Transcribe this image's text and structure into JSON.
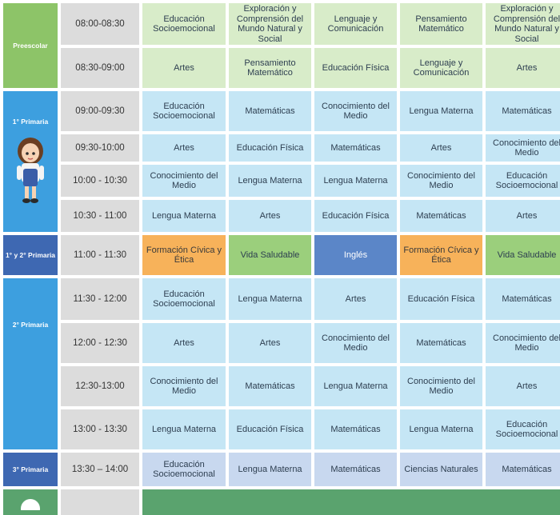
{
  "levels": {
    "preescolar": "Preescolar",
    "primaria1": "1° Primaria",
    "primaria12": "1° y 2° Primaria",
    "primaria2": "2° Primaria",
    "primaria3": "3° Primaria"
  },
  "rows": [
    {
      "time": "08:00-08:30",
      "cells": [
        "Educación Socioemocional",
        "Exploración y Comprensión del Mundo Natural y Social",
        "Lenguaje y Comunicación",
        "Pensamiento Matemático",
        "Exploración y Comprensión del Mundo Natural y Social"
      ]
    },
    {
      "time": "08:30-09:00",
      "cells": [
        "Artes",
        "Pensamiento Matemático",
        "Educación Física",
        "Lenguaje y Comunicación",
        "Artes"
      ]
    },
    {
      "time": "09:00-09:30",
      "cells": [
        "Educación Socioemocional",
        "Matemáticas",
        "Conocimiento del Medio",
        "Lengua Materna",
        "Matemáticas"
      ]
    },
    {
      "time": "09:30-10:00",
      "cells": [
        "Artes",
        "Educación Física",
        "Matemáticas",
        "Artes",
        "Conocimiento del Medio"
      ]
    },
    {
      "time": "10:00 - 10:30",
      "cells": [
        "Conocimiento del Medio",
        "Lengua Materna",
        "Lengua Materna",
        "Conocimiento del Medio",
        "Educación Socioemocional"
      ]
    },
    {
      "time": "10:30 - 11:00",
      "cells": [
        "Lengua Materna",
        "Artes",
        "Educación Física",
        "Matemáticas",
        "Artes"
      ]
    },
    {
      "time": "11:00 - 11:30",
      "cells": [
        "Formación Cívica y Ética",
        "Vida Saludable",
        "Inglés",
        "Formación Cívica y Ética",
        "Vida Saludable"
      ]
    },
    {
      "time": "11:30 - 12:00",
      "cells": [
        "Educación Socioemocional",
        "Lengua Materna",
        "Artes",
        "Educación Física",
        "Matemáticas"
      ]
    },
    {
      "time": "12:00 - 12:30",
      "cells": [
        "Artes",
        "Artes",
        "Conocimiento del Medio",
        "Matemáticas",
        "Conocimiento del Medio"
      ]
    },
    {
      "time": "12:30-13:00",
      "cells": [
        "Conocimiento del Medio",
        "Matemáticas",
        "Lengua Materna",
        "Conocimiento del Medio",
        "Artes"
      ]
    },
    {
      "time": "13:00 - 13:30",
      "cells": [
        "Lengua Materna",
        "Educación Física",
        "Matemáticas",
        "Lengua Materna",
        "Educación Socioemocional"
      ]
    },
    {
      "time": "13:30 – 14:00",
      "cells": [
        "Educación Socioemocional",
        "Lengua Materna",
        "Matemáticas",
        "Ciencias Naturales",
        "Matemáticas"
      ]
    }
  ]
}
